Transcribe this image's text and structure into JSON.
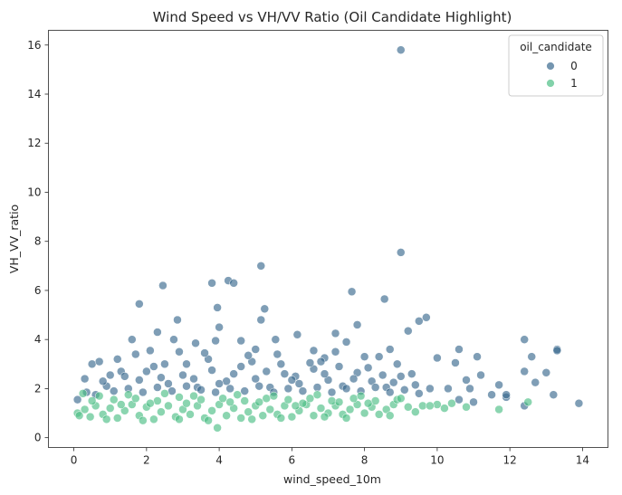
{
  "chart_data": {
    "type": "scatter",
    "title": "Wind Speed vs VH/VV Ratio (Oil Candidate Highlight)",
    "xlabel": "wind_speed_10m",
    "ylabel": "VH_VV_ratio",
    "xlim": [
      -0.7,
      14.7
    ],
    "ylim": [
      -0.4,
      16.6
    ],
    "xticks": [
      0,
      2,
      4,
      6,
      8,
      10,
      12,
      14
    ],
    "yticks": [
      0,
      2,
      4,
      6,
      8,
      10,
      12,
      14,
      16
    ],
    "grid": false,
    "legend": {
      "title": "oil_candidate",
      "placement": "top-right",
      "entries": [
        {
          "label": "0",
          "color": "#3b6a8f"
        },
        {
          "label": "1",
          "color": "#4dbf86"
        }
      ]
    },
    "series": [
      {
        "name": "0",
        "color": "#3b6a8f",
        "points": [
          [
            9.0,
            15.8
          ],
          [
            9.0,
            7.55
          ],
          [
            5.15,
            7.0
          ],
          [
            4.25,
            6.4
          ],
          [
            4.4,
            6.3
          ],
          [
            2.45,
            6.2
          ],
          [
            3.8,
            6.3
          ],
          [
            7.65,
            5.95
          ],
          [
            1.8,
            5.45
          ],
          [
            8.55,
            5.65
          ],
          [
            3.95,
            5.3
          ],
          [
            5.25,
            5.25
          ],
          [
            2.85,
            4.8
          ],
          [
            5.15,
            4.8
          ],
          [
            9.7,
            4.9
          ],
          [
            9.5,
            4.75
          ],
          [
            7.8,
            4.6
          ],
          [
            9.2,
            4.35
          ],
          [
            12.4,
            4.0
          ],
          [
            13.3,
            3.6
          ],
          [
            13.3,
            3.55
          ],
          [
            4.0,
            4.5
          ],
          [
            3.9,
            3.95
          ],
          [
            2.3,
            4.3
          ],
          [
            6.15,
            4.2
          ],
          [
            7.2,
            4.25
          ],
          [
            8.7,
            3.6
          ],
          [
            10.6,
            3.6
          ],
          [
            12.6,
            3.3
          ],
          [
            13.2,
            1.75
          ],
          [
            12.4,
            2.7
          ],
          [
            13.0,
            2.65
          ],
          [
            12.7,
            2.25
          ],
          [
            11.9,
            1.65
          ],
          [
            11.9,
            1.75
          ],
          [
            12.4,
            1.3
          ],
          [
            13.9,
            1.4
          ],
          [
            11.1,
            3.3
          ],
          [
            10.5,
            3.05
          ],
          [
            10.0,
            3.25
          ],
          [
            11.2,
            2.55
          ],
          [
            11.7,
            2.15
          ],
          [
            10.8,
            2.35
          ],
          [
            10.3,
            2.0
          ],
          [
            10.9,
            2.0
          ],
          [
            11.5,
            1.75
          ],
          [
            11.0,
            1.45
          ],
          [
            10.6,
            1.55
          ],
          [
            0.1,
            1.55
          ],
          [
            0.3,
            2.4
          ],
          [
            0.5,
            3.0
          ],
          [
            0.7,
            3.1
          ],
          [
            1.2,
            3.2
          ],
          [
            1.6,
            4.0
          ],
          [
            2.1,
            3.55
          ],
          [
            2.75,
            4.0
          ],
          [
            3.35,
            3.85
          ],
          [
            4.6,
            3.95
          ],
          [
            5.55,
            4.0
          ],
          [
            6.6,
            3.55
          ],
          [
            7.5,
            3.9
          ],
          [
            8.4,
            3.3
          ],
          [
            6.9,
            3.25
          ],
          [
            5.0,
            3.6
          ],
          [
            3.1,
            3.0
          ],
          [
            1.0,
            2.55
          ],
          [
            0.35,
            1.85
          ],
          [
            0.6,
            1.75
          ],
          [
            0.9,
            2.1
          ],
          [
            1.3,
            2.7
          ],
          [
            1.8,
            2.35
          ],
          [
            2.2,
            2.9
          ],
          [
            2.6,
            2.2
          ],
          [
            3.0,
            2.55
          ],
          [
            3.4,
            2.05
          ],
          [
            3.8,
            2.75
          ],
          [
            4.2,
            2.3
          ],
          [
            4.6,
            2.9
          ],
          [
            5.0,
            2.4
          ],
          [
            5.4,
            2.05
          ],
          [
            5.8,
            2.6
          ],
          [
            6.2,
            2.2
          ],
          [
            6.6,
            2.8
          ],
          [
            7.0,
            2.35
          ],
          [
            7.4,
            2.1
          ],
          [
            7.8,
            2.65
          ],
          [
            8.2,
            2.3
          ],
          [
            8.6,
            2.05
          ],
          [
            9.0,
            2.5
          ],
          [
            9.4,
            2.15
          ],
          [
            9.8,
            2.0
          ],
          [
            1.1,
            1.9
          ],
          [
            1.5,
            2.0
          ],
          [
            1.9,
            1.85
          ],
          [
            2.3,
            2.05
          ],
          [
            2.7,
            1.9
          ],
          [
            3.1,
            2.1
          ],
          [
            3.5,
            1.95
          ],
          [
            3.9,
            1.85
          ],
          [
            4.3,
            2.0
          ],
          [
            4.7,
            1.9
          ],
          [
            5.1,
            2.1
          ],
          [
            5.5,
            1.85
          ],
          [
            5.9,
            2.0
          ],
          [
            6.3,
            1.9
          ],
          [
            6.7,
            2.05
          ],
          [
            7.1,
            1.85
          ],
          [
            7.5,
            2.0
          ],
          [
            7.9,
            1.9
          ],
          [
            8.3,
            2.05
          ],
          [
            8.7,
            1.85
          ],
          [
            9.1,
            1.95
          ],
          [
            9.5,
            1.8
          ],
          [
            0.8,
            2.3
          ],
          [
            1.4,
            2.5
          ],
          [
            2.0,
            2.7
          ],
          [
            2.5,
            3.0
          ],
          [
            3.3,
            2.4
          ],
          [
            3.7,
            3.2
          ],
          [
            4.4,
            2.6
          ],
          [
            4.9,
            3.1
          ],
          [
            5.3,
            2.7
          ],
          [
            5.7,
            3.0
          ],
          [
            6.1,
            2.5
          ],
          [
            6.5,
            3.05
          ],
          [
            6.9,
            2.6
          ],
          [
            7.3,
            2.9
          ],
          [
            7.7,
            2.4
          ],
          [
            8.1,
            2.85
          ],
          [
            8.5,
            2.55
          ],
          [
            8.9,
            3.0
          ],
          [
            9.3,
            2.6
          ],
          [
            1.7,
            3.4
          ],
          [
            2.9,
            3.5
          ],
          [
            3.6,
            3.45
          ],
          [
            4.8,
            3.35
          ],
          [
            5.6,
            3.4
          ],
          [
            6.8,
            3.1
          ],
          [
            7.2,
            3.5
          ],
          [
            8.0,
            3.3
          ],
          [
            2.4,
            2.45
          ],
          [
            4.0,
            2.2
          ],
          [
            6.0,
            2.35
          ],
          [
            8.8,
            2.25
          ]
        ]
      },
      {
        "name": "1",
        "color": "#4dbf86",
        "points": [
          [
            3.95,
            0.4
          ],
          [
            12.5,
            1.45
          ],
          [
            11.7,
            1.15
          ],
          [
            10.8,
            1.25
          ],
          [
            10.4,
            1.4
          ],
          [
            10.0,
            1.35
          ],
          [
            9.6,
            1.3
          ],
          [
            9.2,
            1.25
          ],
          [
            9.4,
            1.05
          ],
          [
            8.8,
            1.35
          ],
          [
            0.1,
            1.0
          ],
          [
            0.15,
            0.9
          ],
          [
            0.3,
            1.15
          ],
          [
            0.45,
            0.85
          ],
          [
            0.6,
            1.3
          ],
          [
            0.8,
            0.95
          ],
          [
            1.0,
            1.2
          ],
          [
            1.2,
            0.8
          ],
          [
            1.4,
            1.1
          ],
          [
            1.6,
            1.35
          ],
          [
            1.8,
            0.9
          ],
          [
            2.0,
            1.25
          ],
          [
            2.2,
            0.75
          ],
          [
            2.4,
            1.05
          ],
          [
            2.6,
            1.3
          ],
          [
            2.8,
            0.85
          ],
          [
            3.0,
            1.15
          ],
          [
            3.2,
            0.95
          ],
          [
            3.4,
            1.3
          ],
          [
            3.6,
            0.8
          ],
          [
            3.8,
            1.1
          ],
          [
            4.0,
            1.35
          ],
          [
            4.2,
            0.9
          ],
          [
            4.4,
            1.2
          ],
          [
            4.6,
            0.8
          ],
          [
            4.8,
            1.05
          ],
          [
            5.0,
            1.3
          ],
          [
            5.2,
            0.9
          ],
          [
            5.4,
            1.15
          ],
          [
            5.6,
            0.95
          ],
          [
            5.8,
            1.3
          ],
          [
            6.0,
            0.85
          ],
          [
            6.2,
            1.1
          ],
          [
            6.4,
            1.35
          ],
          [
            6.6,
            0.9
          ],
          [
            6.8,
            1.2
          ],
          [
            7.0,
            1.0
          ],
          [
            7.2,
            1.3
          ],
          [
            7.4,
            0.95
          ],
          [
            7.6,
            1.15
          ],
          [
            7.8,
            1.35
          ],
          [
            8.0,
            1.0
          ],
          [
            8.2,
            1.25
          ],
          [
            8.4,
            0.95
          ],
          [
            8.6,
            1.15
          ],
          [
            0.5,
            1.5
          ],
          [
            1.1,
            1.55
          ],
          [
            1.7,
            1.6
          ],
          [
            2.3,
            1.5
          ],
          [
            2.9,
            1.65
          ],
          [
            3.5,
            1.55
          ],
          [
            4.1,
            1.6
          ],
          [
            4.7,
            1.5
          ],
          [
            5.3,
            1.6
          ],
          [
            5.9,
            1.55
          ],
          [
            6.5,
            1.6
          ],
          [
            7.1,
            1.5
          ],
          [
            7.7,
            1.6
          ],
          [
            8.3,
            1.5
          ],
          [
            8.9,
            1.55
          ],
          [
            0.25,
            1.8
          ],
          [
            0.7,
            1.7
          ],
          [
            1.5,
            1.75
          ],
          [
            2.5,
            1.8
          ],
          [
            3.3,
            1.7
          ],
          [
            4.5,
            1.75
          ],
          [
            5.5,
            1.7
          ],
          [
            6.7,
            1.75
          ],
          [
            7.9,
            1.7
          ],
          [
            9.0,
            1.6
          ],
          [
            9.8,
            1.3
          ],
          [
            10.2,
            1.2
          ],
          [
            0.9,
            0.75
          ],
          [
            1.9,
            0.7
          ],
          [
            2.9,
            0.75
          ],
          [
            3.7,
            0.7
          ],
          [
            4.9,
            0.75
          ],
          [
            5.7,
            0.8
          ],
          [
            6.9,
            0.85
          ],
          [
            7.5,
            0.8
          ],
          [
            8.7,
            0.9
          ],
          [
            3.1,
            1.4
          ],
          [
            4.3,
            1.45
          ],
          [
            6.3,
            1.4
          ],
          [
            7.3,
            1.45
          ],
          [
            2.1,
            1.4
          ],
          [
            5.1,
            1.45
          ],
          [
            8.1,
            1.4
          ],
          [
            1.3,
            1.35
          ],
          [
            6.1,
            1.3
          ]
        ]
      }
    ]
  }
}
